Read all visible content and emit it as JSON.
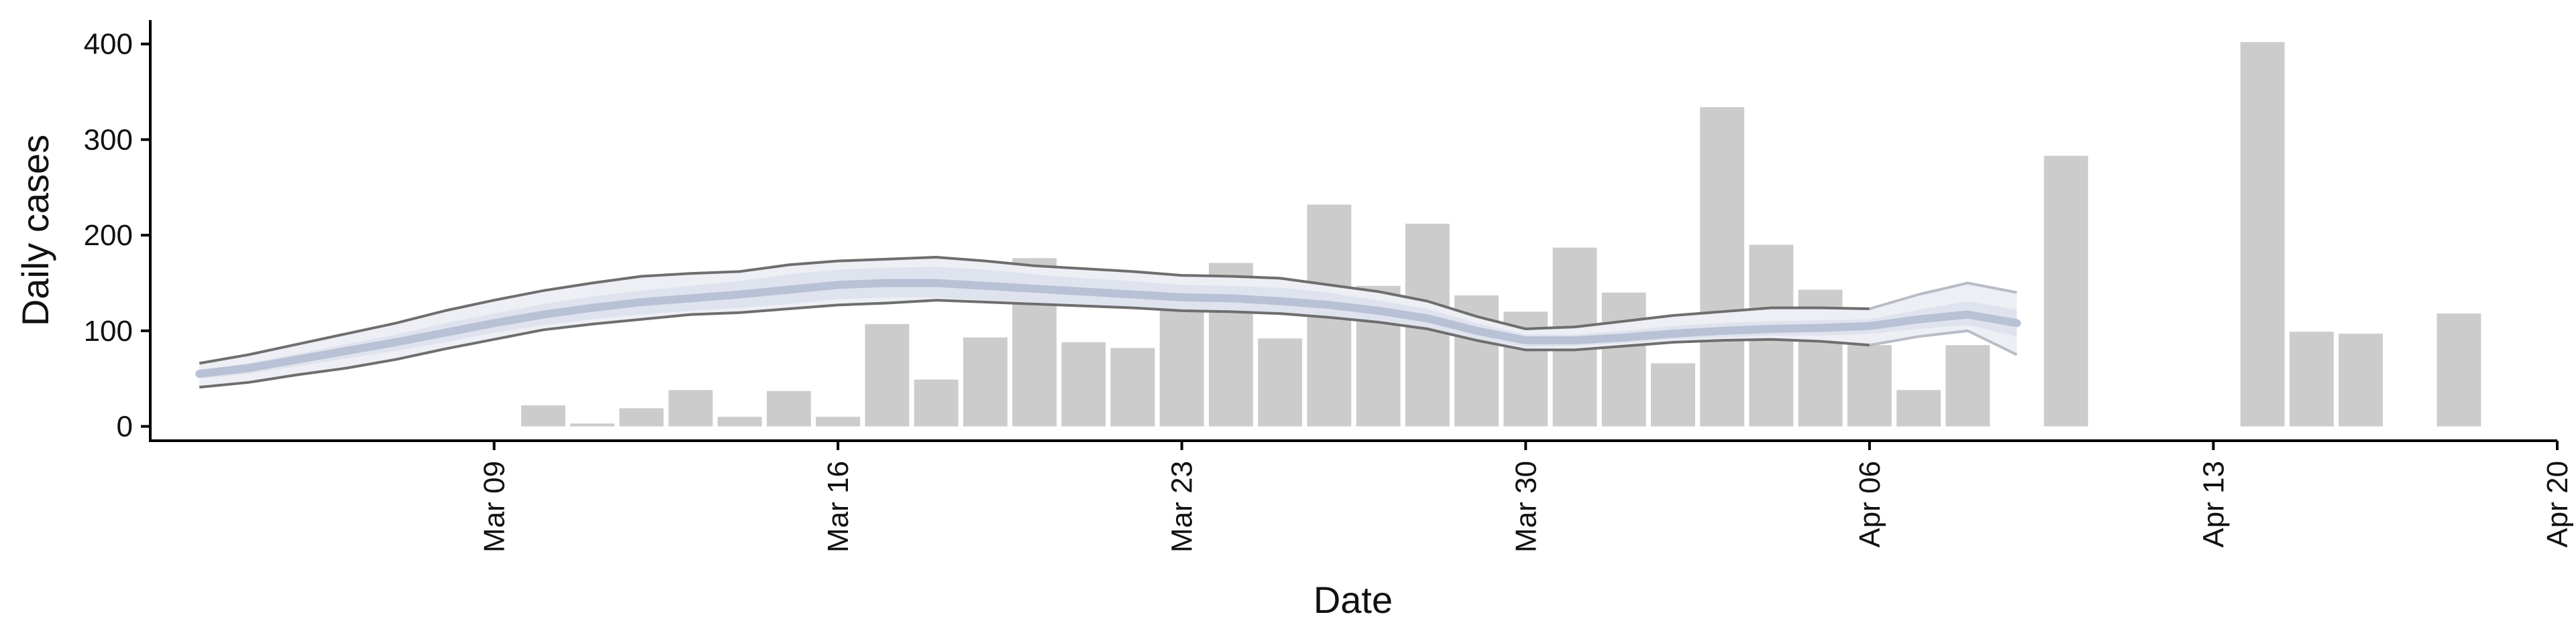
{
  "chart_data": {
    "type": "bar",
    "xlabel": "Date",
    "ylabel": "Daily cases",
    "ylim": [
      -15,
      425
    ],
    "xlim": [
      "2020-03-02",
      "2020-04-20"
    ],
    "yticks": [
      0,
      100,
      200,
      300,
      400
    ],
    "xticks": [
      {
        "date": "2020-03-09",
        "label": "Mar 09"
      },
      {
        "date": "2020-03-16",
        "label": "Mar 16"
      },
      {
        "date": "2020-03-23",
        "label": "Mar 23"
      },
      {
        "date": "2020-03-30",
        "label": "Mar 30"
      },
      {
        "date": "2020-04-06",
        "label": "Apr 06"
      },
      {
        "date": "2020-04-13",
        "label": "Apr 13"
      },
      {
        "date": "2020-04-20",
        "label": "Apr 20"
      }
    ],
    "grid": false,
    "legend": "none",
    "colors": {
      "bars": "#cccccc",
      "bound_lines": "#6e6e6e",
      "band_outer": "#eeeff5",
      "band_inner": "#dfe3ee",
      "median": "#b9c1d6"
    },
    "bars": [
      {
        "date": "2020-03-10",
        "value": 22
      },
      {
        "date": "2020-03-11",
        "value": 3
      },
      {
        "date": "2020-03-12",
        "value": 19
      },
      {
        "date": "2020-03-13",
        "value": 38
      },
      {
        "date": "2020-03-14",
        "value": 10
      },
      {
        "date": "2020-03-15",
        "value": 37
      },
      {
        "date": "2020-03-16",
        "value": 10
      },
      {
        "date": "2020-03-17",
        "value": 107
      },
      {
        "date": "2020-03-18",
        "value": 49
      },
      {
        "date": "2020-03-19",
        "value": 93
      },
      {
        "date": "2020-03-20",
        "value": 176
      },
      {
        "date": "2020-03-21",
        "value": 88
      },
      {
        "date": "2020-03-22",
        "value": 82
      },
      {
        "date": "2020-03-23",
        "value": 135
      },
      {
        "date": "2020-03-24",
        "value": 171
      },
      {
        "date": "2020-03-25",
        "value": 92
      },
      {
        "date": "2020-03-26",
        "value": 232
      },
      {
        "date": "2020-03-27",
        "value": 147
      },
      {
        "date": "2020-03-28",
        "value": 212
      },
      {
        "date": "2020-03-29",
        "value": 137
      },
      {
        "date": "2020-03-30",
        "value": 120
      },
      {
        "date": "2020-03-31",
        "value": 187
      },
      {
        "date": "2020-04-01",
        "value": 140
      },
      {
        "date": "2020-04-02",
        "value": 66
      },
      {
        "date": "2020-04-03",
        "value": 334
      },
      {
        "date": "2020-04-04",
        "value": 190
      },
      {
        "date": "2020-04-05",
        "value": 143
      },
      {
        "date": "2020-04-06",
        "value": 85
      },
      {
        "date": "2020-04-07",
        "value": 38
      },
      {
        "date": "2020-04-08",
        "value": 85
      },
      {
        "date": "2020-04-10",
        "value": 283
      },
      {
        "date": "2020-04-14",
        "value": 402
      },
      {
        "date": "2020-04-15",
        "value": 99
      },
      {
        "date": "2020-04-16",
        "value": 97
      },
      {
        "date": "2020-04-18",
        "value": 118
      }
    ],
    "estimate": {
      "dates": [
        "2020-03-03",
        "2020-03-04",
        "2020-03-05",
        "2020-03-06",
        "2020-03-07",
        "2020-03-08",
        "2020-03-09",
        "2020-03-10",
        "2020-03-11",
        "2020-03-12",
        "2020-03-13",
        "2020-03-14",
        "2020-03-15",
        "2020-03-16",
        "2020-03-17",
        "2020-03-18",
        "2020-03-19",
        "2020-03-20",
        "2020-03-21",
        "2020-03-22",
        "2020-03-23",
        "2020-03-24",
        "2020-03-25",
        "2020-03-26",
        "2020-03-27",
        "2020-03-28",
        "2020-03-29",
        "2020-03-30",
        "2020-03-31",
        "2020-04-01",
        "2020-04-02",
        "2020-04-03",
        "2020-04-04",
        "2020-04-05",
        "2020-04-06",
        "2020-04-07",
        "2020-04-08",
        "2020-04-09"
      ],
      "upper": [
        66,
        75,
        86,
        97,
        108,
        121,
        132,
        142,
        150,
        157,
        160,
        162,
        169,
        173,
        175,
        177,
        173,
        168,
        165,
        162,
        158,
        157,
        155,
        148,
        141,
        131,
        115,
        102,
        104,
        110,
        116,
        120,
        124,
        124,
        123,
        138,
        150,
        140
      ],
      "inner_upper": [
        59,
        66,
        76,
        86,
        96,
        108,
        118,
        128,
        136,
        142,
        147,
        152,
        159,
        164,
        166,
        167,
        164,
        159,
        155,
        152,
        148,
        147,
        145,
        140,
        132,
        123,
        108,
        96,
        96,
        100,
        105,
        108,
        110,
        111,
        112,
        122,
        131,
        122
      ],
      "median": [
        55,
        61,
        70,
        79,
        88,
        98,
        108,
        117,
        124,
        130,
        134,
        138,
        143,
        148,
        150,
        150,
        147,
        144,
        141,
        138,
        135,
        134,
        131,
        127,
        121,
        113,
        100,
        90,
        90,
        93,
        97,
        100,
        102,
        103,
        105,
        112,
        117,
        108
      ],
      "inner_lower": [
        50,
        55,
        63,
        71,
        79,
        88,
        98,
        106,
        112,
        117,
        121,
        124,
        128,
        133,
        135,
        135,
        132,
        130,
        127,
        125,
        122,
        121,
        119,
        115,
        110,
        103,
        91,
        83,
        84,
        87,
        91,
        93,
        95,
        95,
        97,
        102,
        106,
        94
      ],
      "lower": [
        41,
        46,
        54,
        61,
        70,
        81,
        91,
        101,
        107,
        112,
        117,
        119,
        123,
        127,
        129,
        132,
        130,
        128,
        126,
        124,
        121,
        120,
        118,
        114,
        109,
        102,
        90,
        80,
        80,
        84,
        88,
        90,
        91,
        89,
        85,
        94,
        100,
        75
      ]
    }
  }
}
